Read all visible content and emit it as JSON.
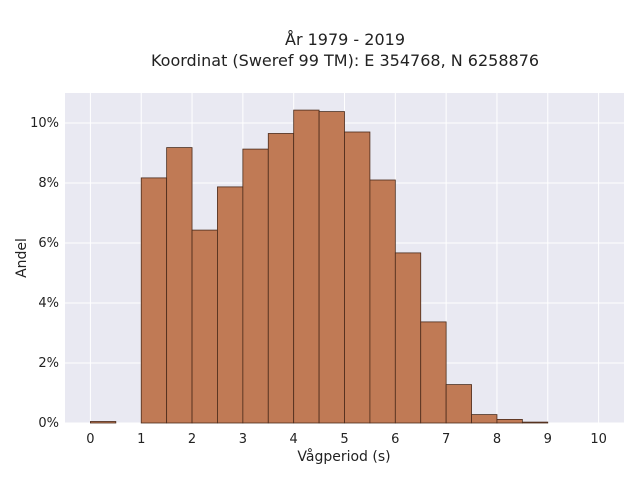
{
  "chart_data": {
    "type": "bar",
    "title_line1": "År 1979 - 2019",
    "title_line2": "Koordinat (Sweref 99 TM): E 354768, N 6258876",
    "xlabel": "Vågperiod (s)",
    "ylabel": "Andel",
    "bin_width": 0.5,
    "bin_starts": [
      0,
      0.5,
      1,
      1.5,
      2,
      2.5,
      3,
      3.5,
      4,
      4.5,
      5,
      5.5,
      6,
      6.5,
      7,
      7.5,
      8,
      8.5,
      9,
      9.5
    ],
    "values": [
      0.05,
      0,
      8.17,
      9.18,
      6.43,
      7.87,
      9.13,
      9.65,
      10.43,
      10.38,
      9.7,
      8.1,
      5.67,
      3.37,
      1.28,
      0.28,
      0.12,
      0.03,
      0,
      0
    ],
    "xlim": [
      -0.5,
      10.5
    ],
    "ylim": [
      0,
      11
    ],
    "xticks": [
      "0",
      "1",
      "2",
      "3",
      "4",
      "5",
      "6",
      "7",
      "8",
      "9",
      "10"
    ],
    "yticks": [
      "0%",
      "2%",
      "4%",
      "6%",
      "8%",
      "10%"
    ],
    "grid": true,
    "colors": {
      "bar_fill": "#c07a55",
      "bar_stroke": "#4a2a1a",
      "plot_bg": "#e9e9f2",
      "grid": "#ffffff"
    }
  }
}
